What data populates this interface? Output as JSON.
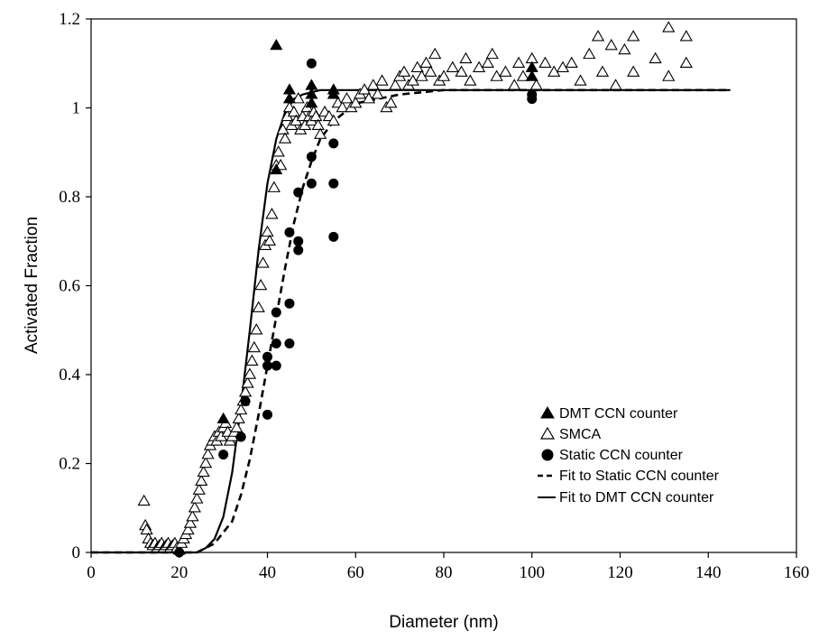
{
  "chart_data": {
    "type": "scatter",
    "title": "",
    "xlabel": "Diameter (nm)",
    "ylabel": "Activated Fraction",
    "xlim": [
      0,
      160
    ],
    "ylim": [
      0,
      1.2
    ],
    "x_ticks": [
      0,
      20,
      40,
      60,
      80,
      100,
      120,
      140,
      160
    ],
    "y_ticks": [
      0,
      0.2,
      0.4,
      0.6,
      0.8,
      1,
      1.2
    ],
    "x_tick_labels": [
      "0",
      "20",
      "40",
      "60",
      "80",
      "100",
      "120",
      "140",
      "160"
    ],
    "y_tick_labels": [
      "0",
      "0.2",
      "0.4",
      "0.6",
      "0.8",
      "1",
      "1.2"
    ],
    "grid": false,
    "legend_position": "bottom-right",
    "series": [
      {
        "name": "DMT CCN counter",
        "marker": "filled-triangle",
        "color": "#000000",
        "points": [
          [
            30,
            0.3
          ],
          [
            42,
            1.14
          ],
          [
            42,
            0.86
          ],
          [
            45,
            1.04
          ],
          [
            45,
            1.02
          ],
          [
            50,
            1.05
          ],
          [
            50,
            1.03
          ],
          [
            50,
            1.01
          ],
          [
            55,
            1.04
          ],
          [
            55,
            1.03
          ],
          [
            100,
            1.09
          ],
          [
            100,
            1.07
          ]
        ]
      },
      {
        "name": "SMCA",
        "marker": "open-triangle",
        "color": "#000000",
        "points": [
          [
            12,
            0.115
          ],
          [
            12.3,
            0.06
          ],
          [
            12.6,
            0.05
          ],
          [
            13,
            0.03
          ],
          [
            13.5,
            0.02
          ],
          [
            14,
            0.015
          ],
          [
            14.5,
            0.02
          ],
          [
            15,
            0.01
          ],
          [
            15.5,
            0.015
          ],
          [
            16,
            0.02
          ],
          [
            16.5,
            0.01
          ],
          [
            17,
            0.015
          ],
          [
            17.5,
            0.02
          ],
          [
            18,
            0.01
          ],
          [
            18.5,
            0.015
          ],
          [
            19,
            0.02
          ],
          [
            19.5,
            0.01
          ],
          [
            20,
            0.005
          ],
          [
            20.5,
            0.02
          ],
          [
            21,
            0.03
          ],
          [
            21.5,
            0.04
          ],
          [
            22,
            0.05
          ],
          [
            22.5,
            0.065
          ],
          [
            23,
            0.08
          ],
          [
            23.5,
            0.1
          ],
          [
            24,
            0.12
          ],
          [
            24.5,
            0.14
          ],
          [
            25,
            0.16
          ],
          [
            25.5,
            0.18
          ],
          [
            26,
            0.2
          ],
          [
            26.5,
            0.22
          ],
          [
            27,
            0.24
          ],
          [
            27.5,
            0.25
          ],
          [
            28,
            0.26
          ],
          [
            28.5,
            0.25
          ],
          [
            29,
            0.27
          ],
          [
            29.5,
            0.26
          ],
          [
            30,
            0.28
          ],
          [
            30.5,
            0.29
          ],
          [
            31,
            0.27
          ],
          [
            31.5,
            0.25
          ],
          [
            32,
            0.26
          ],
          [
            32.5,
            0.27
          ],
          [
            33,
            0.28
          ],
          [
            33.5,
            0.3
          ],
          [
            34,
            0.32
          ],
          [
            34.5,
            0.34
          ],
          [
            35,
            0.36
          ],
          [
            35.5,
            0.38
          ],
          [
            36,
            0.4
          ],
          [
            36.5,
            0.43
          ],
          [
            37,
            0.46
          ],
          [
            37.5,
            0.5
          ],
          [
            38,
            0.55
          ],
          [
            38.5,
            0.6
          ],
          [
            39,
            0.65
          ],
          [
            39.5,
            0.69
          ],
          [
            40,
            0.72
          ],
          [
            40.5,
            0.7
          ],
          [
            41,
            0.76
          ],
          [
            41.5,
            0.82
          ],
          [
            42,
            0.87
          ],
          [
            42.5,
            0.9
          ],
          [
            43,
            0.87
          ],
          [
            43.5,
            0.95
          ],
          [
            44,
            0.93
          ],
          [
            44.5,
            0.98
          ],
          [
            45,
            1.0
          ],
          [
            45.5,
            0.96
          ],
          [
            46,
            0.99
          ],
          [
            46.5,
            0.97
          ],
          [
            47,
            1.02
          ],
          [
            47.5,
            0.95
          ],
          [
            48,
            0.98
          ],
          [
            48.5,
            0.96
          ],
          [
            49,
            1.0
          ],
          [
            49.5,
            0.98
          ],
          [
            50,
            0.97
          ],
          [
            50.5,
            0.99
          ],
          [
            51,
            0.98
          ],
          [
            51.5,
            0.96
          ],
          [
            52,
            0.94
          ],
          [
            53,
            0.99
          ],
          [
            54,
            0.98
          ],
          [
            55,
            0.97
          ],
          [
            56,
            1.01
          ],
          [
            57,
            1.0
          ],
          [
            58,
            1.02
          ],
          [
            59,
            1.0
          ],
          [
            60,
            1.01
          ],
          [
            61,
            1.03
          ],
          [
            62,
            1.04
          ],
          [
            63,
            1.02
          ],
          [
            64,
            1.05
          ],
          [
            65,
            1.03
          ],
          [
            66,
            1.06
          ],
          [
            67,
            1.0
          ],
          [
            68,
            1.01
          ],
          [
            69,
            1.05
          ],
          [
            70,
            1.07
          ],
          [
            71,
            1.08
          ],
          [
            72,
            1.05
          ],
          [
            73,
            1.06
          ],
          [
            74,
            1.09
          ],
          [
            75,
            1.07
          ],
          [
            76,
            1.1
          ],
          [
            77,
            1.08
          ],
          [
            78,
            1.12
          ],
          [
            79,
            1.06
          ],
          [
            80,
            1.07
          ],
          [
            82,
            1.09
          ],
          [
            84,
            1.08
          ],
          [
            85,
            1.11
          ],
          [
            86,
            1.06
          ],
          [
            88,
            1.09
          ],
          [
            90,
            1.1
          ],
          [
            91,
            1.12
          ],
          [
            92,
            1.07
          ],
          [
            94,
            1.08
          ],
          [
            96,
            1.05
          ],
          [
            97,
            1.1
          ],
          [
            98,
            1.07
          ],
          [
            100,
            1.11
          ],
          [
            101,
            1.05
          ],
          [
            103,
            1.1
          ],
          [
            105,
            1.08
          ],
          [
            107,
            1.09
          ],
          [
            109,
            1.1
          ],
          [
            111,
            1.06
          ],
          [
            113,
            1.12
          ],
          [
            115,
            1.16
          ],
          [
            116,
            1.08
          ],
          [
            118,
            1.14
          ],
          [
            119,
            1.05
          ],
          [
            121,
            1.13
          ],
          [
            123,
            1.16
          ],
          [
            123,
            1.08
          ],
          [
            128,
            1.11
          ],
          [
            131,
            1.18
          ],
          [
            131,
            1.07
          ],
          [
            135,
            1.16
          ],
          [
            135,
            1.1
          ]
        ]
      },
      {
        "name": "Static CCN counter",
        "marker": "filled-circle",
        "color": "#000000",
        "points": [
          [
            20,
            0.0
          ],
          [
            30,
            0.22
          ],
          [
            34,
            0.26
          ],
          [
            35,
            0.34
          ],
          [
            40,
            0.44
          ],
          [
            40,
            0.42
          ],
          [
            40,
            0.31
          ],
          [
            42,
            0.47
          ],
          [
            42,
            0.42
          ],
          [
            42,
            0.54
          ],
          [
            45,
            0.72
          ],
          [
            45,
            0.56
          ],
          [
            45,
            0.47
          ],
          [
            47,
            0.81
          ],
          [
            47,
            0.7
          ],
          [
            47,
            0.68
          ],
          [
            50,
            0.89
          ],
          [
            50,
            0.83
          ],
          [
            50,
            1.1
          ],
          [
            55,
            0.92
          ],
          [
            55,
            0.83
          ],
          [
            55,
            0.71
          ],
          [
            100,
            1.03
          ],
          [
            100,
            1.02
          ]
        ]
      },
      {
        "name": "Fit to Static CCN counter",
        "line_style": "dashed",
        "color": "#000000",
        "points": [
          [
            0,
            0.0
          ],
          [
            24,
            0.0
          ],
          [
            28,
            0.02
          ],
          [
            32,
            0.07
          ],
          [
            34,
            0.13
          ],
          [
            36,
            0.21
          ],
          [
            38,
            0.31
          ],
          [
            40,
            0.42
          ],
          [
            42,
            0.53
          ],
          [
            44,
            0.64
          ],
          [
            46,
            0.74
          ],
          [
            48,
            0.82
          ],
          [
            50,
            0.88
          ],
          [
            52,
            0.93
          ],
          [
            55,
            0.97
          ],
          [
            60,
            1.01
          ],
          [
            70,
            1.03
          ],
          [
            80,
            1.04
          ],
          [
            100,
            1.04
          ],
          [
            120,
            1.04
          ],
          [
            145,
            1.04
          ]
        ]
      },
      {
        "name": "Fit to DMT CCN counter",
        "line_style": "solid",
        "color": "#000000",
        "points": [
          [
            0,
            0.0
          ],
          [
            24,
            0.0
          ],
          [
            26,
            0.01
          ],
          [
            28,
            0.03
          ],
          [
            30,
            0.08
          ],
          [
            32,
            0.18
          ],
          [
            34,
            0.33
          ],
          [
            36,
            0.5
          ],
          [
            38,
            0.68
          ],
          [
            40,
            0.83
          ],
          [
            42,
            0.93
          ],
          [
            44,
            0.99
          ],
          [
            46,
            1.02
          ],
          [
            48,
            1.03
          ],
          [
            52,
            1.04
          ],
          [
            60,
            1.04
          ],
          [
            80,
            1.04
          ],
          [
            100,
            1.04
          ],
          [
            120,
            1.04
          ],
          [
            145,
            1.04
          ]
        ]
      }
    ]
  }
}
